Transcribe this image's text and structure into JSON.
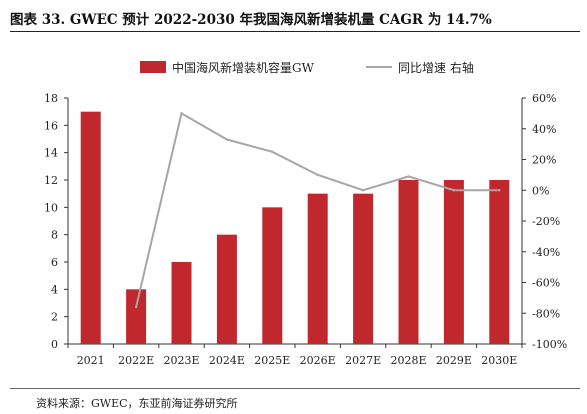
{
  "title": "图表 33. GWEC 预计 2022-2030 年我国海风新增装机量 CAGR 为 14.7%",
  "source": "资料来源：GWEC，东亚前海证券研究所",
  "chart_data": {
    "type": "bar",
    "categories": [
      "2021",
      "2022E",
      "2023E",
      "2024E",
      "2025E",
      "2026E",
      "2027E",
      "2028E",
      "2029E",
      "2030E"
    ],
    "series": [
      {
        "name": "中国海风新增装机容量GW",
        "type": "bar",
        "axis": "left",
        "color": "#c0282d",
        "values": [
          17,
          4,
          6,
          8,
          10,
          11,
          11,
          12,
          12,
          12
        ]
      },
      {
        "name": "同比增速 右轴",
        "type": "line",
        "axis": "right",
        "color": "#a6a6a6",
        "values": [
          null,
          -76,
          50,
          33,
          25,
          10,
          0,
          9,
          0,
          0
        ]
      }
    ],
    "y_left": {
      "ylim": [
        0,
        18
      ],
      "ticks": [
        "0",
        "2",
        "4",
        "6",
        "8",
        "10",
        "12",
        "14",
        "16",
        "18"
      ]
    },
    "y_right": {
      "ylim": [
        -100,
        60
      ],
      "ticks": [
        "-100%",
        "-80%",
        "-60%",
        "-40%",
        "-20%",
        "0%",
        "20%",
        "40%",
        "60%"
      ]
    },
    "grid": false,
    "legend_position": "top-center"
  }
}
